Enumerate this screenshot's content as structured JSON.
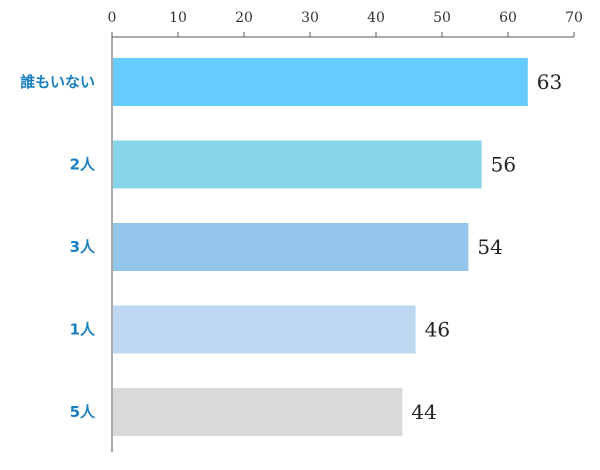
{
  "chart_data": {
    "type": "bar",
    "orientation": "horizontal",
    "categories": [
      "誰もいない",
      "2人",
      "3人",
      "1人",
      "5人"
    ],
    "values": [
      63,
      56,
      54,
      46,
      44
    ],
    "xlim": [
      0,
      70
    ],
    "x_ticks": [
      0,
      10,
      20,
      30,
      40,
      50,
      60,
      70
    ],
    "x_axis_position": "top",
    "grid": false,
    "legend": "none",
    "data_labels": true,
    "colors": [
      "#66ccff",
      "#88d5e9",
      "#94c6eb",
      "#bdd8f0",
      "#d9d9d9"
    ],
    "category_label_color": "#1a7fc1"
  }
}
